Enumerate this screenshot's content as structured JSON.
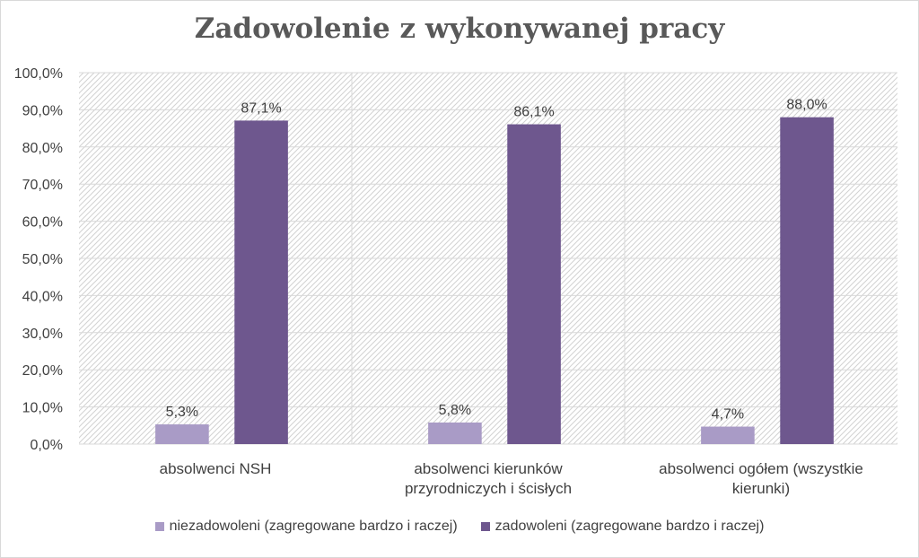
{
  "chart_data": {
    "type": "bar",
    "title": "Zadowolenie z wykonywanej pracy",
    "categories": [
      [
        "absolwenci NSH"
      ],
      [
        "absolwenci kierunków",
        "przyrodniczych i ścisłych"
      ],
      [
        "absolwenci ogółem (wszystkie",
        "kierunki)"
      ]
    ],
    "series": [
      {
        "name": "niezadowoleni (zagregowane bardzo i raczej)",
        "color": "#a99bc6",
        "values": [
          5.3,
          5.8,
          4.7
        ],
        "labels": [
          "5,3%",
          "5,8%",
          "4,7%"
        ]
      },
      {
        "name": "zadowoleni (zagregowane bardzo i raczej)",
        "color": "#6e578e",
        "values": [
          87.1,
          86.1,
          88.0
        ],
        "labels": [
          "87,1%",
          "86,1%",
          "88,0%"
        ]
      }
    ],
    "ylim": [
      0,
      100
    ],
    "yticks": [
      0,
      10,
      20,
      30,
      40,
      50,
      60,
      70,
      80,
      90,
      100
    ],
    "ytick_labels": [
      "0,0%",
      "10,0%",
      "20,0%",
      "30,0%",
      "40,0%",
      "50,0%",
      "60,0%",
      "70,0%",
      "80,0%",
      "90,0%",
      "100,0%"
    ],
    "grid": true,
    "plot_background": "hatched",
    "legend_position": "bottom"
  }
}
